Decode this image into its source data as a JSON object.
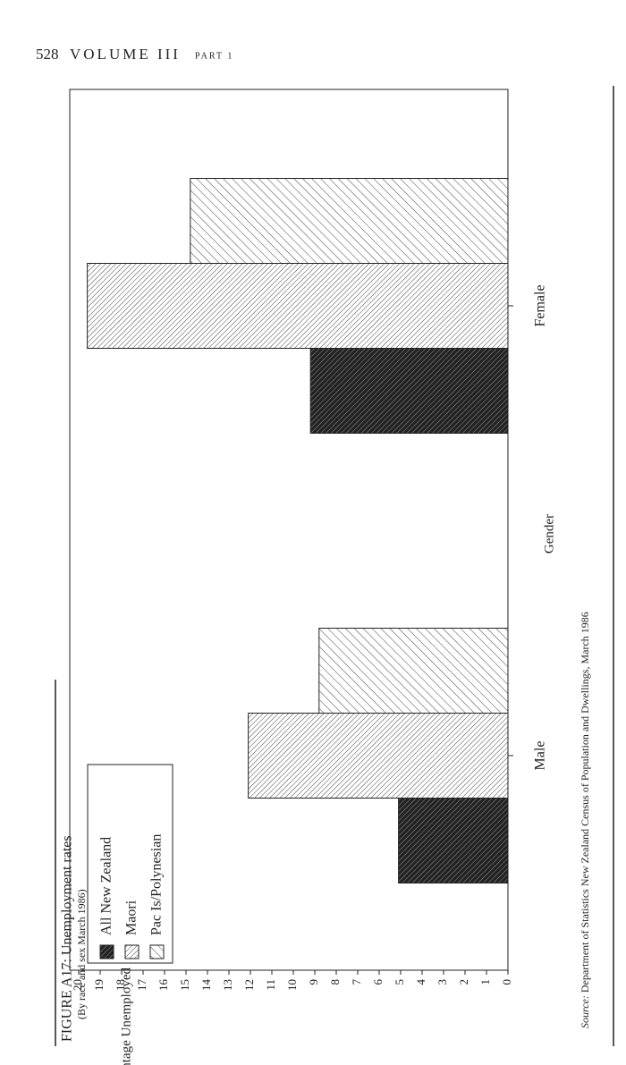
{
  "header": {
    "page": "528",
    "volume": "VOLUME III",
    "part": "PART 1"
  },
  "chart_data": {
    "type": "bar",
    "orientation": "horizontal",
    "title": "FIGURE A17: Unemployment rates",
    "subtitle": "(By race and sex March 1986)",
    "x_label": "Gender",
    "y_label": "Percentage Unemployed",
    "categories": [
      "Male",
      "Female"
    ],
    "series": [
      {
        "name": "All New Zealand",
        "color": "#000000",
        "values": [
          5.1,
          9.2
        ]
      },
      {
        "name": "Maori",
        "color": "#555555",
        "values": [
          12.1,
          19.6
        ]
      },
      {
        "name": "Pac Is/Polynesian",
        "color": "#888888",
        "values": [
          8.8,
          14.8
        ]
      }
    ],
    "ylim": [
      0,
      20
    ],
    "yticks": [
      0,
      1,
      2,
      3,
      4,
      5,
      6,
      7,
      8,
      9,
      10,
      11,
      12,
      13,
      14,
      15,
      16,
      17,
      18,
      19,
      20
    ],
    "legend": "top-left"
  },
  "source": {
    "label": "Source:",
    "text": "Department of Statistics New Zealand Census of Population and Dwellings, March 1986"
  }
}
